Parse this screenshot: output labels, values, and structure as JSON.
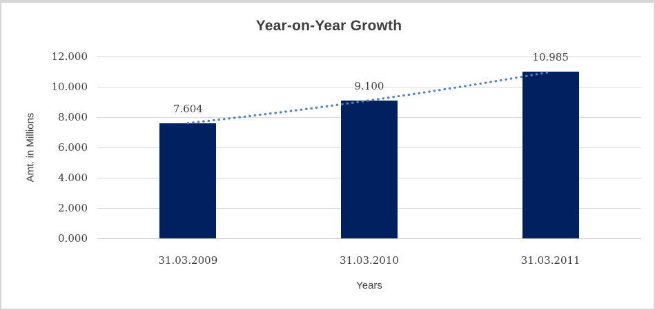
{
  "chart_data": {
    "type": "bar",
    "title": "Year-on-Year Growth",
    "categories": [
      "31.03.2009",
      "31.03.2010",
      "31.03.2011"
    ],
    "values": [
      7.604,
      9.1,
      10.985
    ],
    "data_labels": [
      "7.604",
      "9.100",
      "10.985"
    ],
    "xlabel": "Years",
    "ylabel": "Amt. in Millions",
    "ylim": [
      0,
      12
    ],
    "ytick_step": 2,
    "yticks": [
      "12.000",
      "10.000",
      "8.000",
      "6.000",
      "4.000",
      "2.000",
      "0.000"
    ],
    "grid": true,
    "legend_position": "none",
    "trendline": {
      "style": "dotted",
      "through_values": [
        7.604,
        9.1,
        10.985
      ]
    },
    "colors": {
      "bar": "#002060",
      "trendline": "#4f81bd",
      "gridline": "#d9d9d9",
      "text": "#3f3f3f",
      "frame_border": "#d6d6d6",
      "background": "#ffffff"
    }
  }
}
